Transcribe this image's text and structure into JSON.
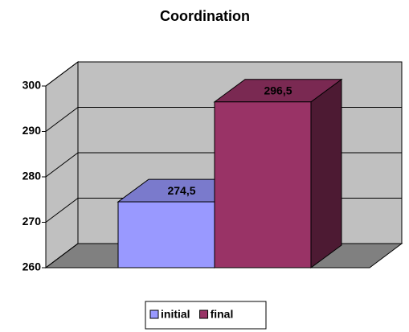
{
  "chart_data": {
    "type": "bar3d",
    "title": "Coordination",
    "categories": [
      null
    ],
    "series": [
      {
        "name": "initial",
        "color": "#9999ff",
        "values": [
          274.5
        ],
        "value_labels": [
          "274,5"
        ]
      },
      {
        "name": "final",
        "color": "#993366",
        "values": [
          296.5
        ],
        "value_labels": [
          "296,5"
        ]
      }
    ],
    "ylim": [
      260,
      300
    ],
    "yticks": [
      260,
      270,
      280,
      290,
      300
    ],
    "grid": true,
    "legend": "bottom"
  }
}
